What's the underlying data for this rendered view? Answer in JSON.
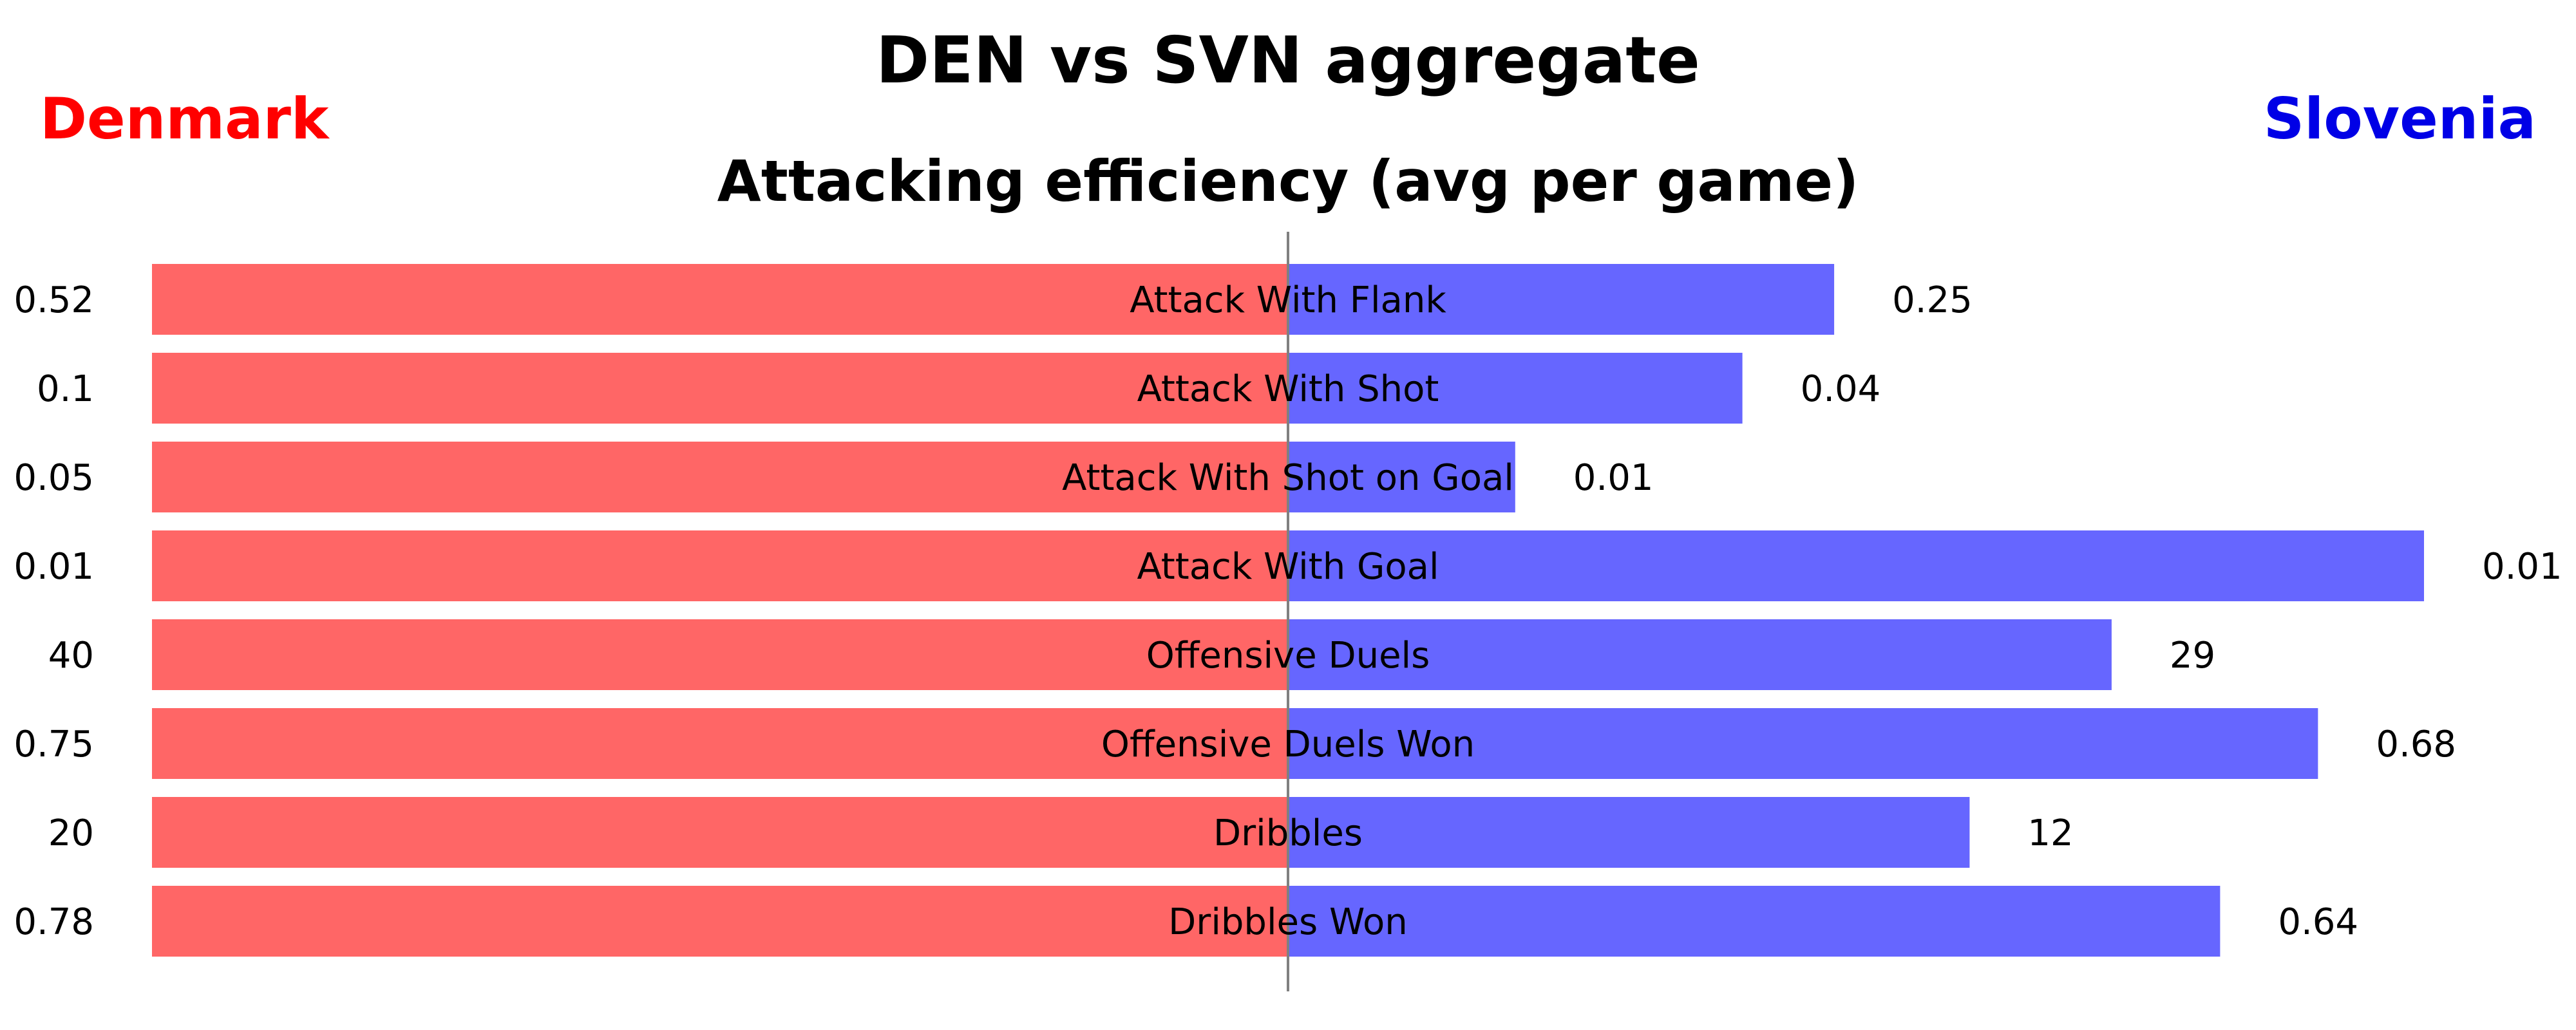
{
  "figure": {
    "title": "DEN vs SVN aggregate",
    "subtitle": "Attacking efficiency (avg per game)"
  },
  "teams": {
    "left": {
      "name": "Denmark",
      "color": "#ff0000",
      "bar_color": "#ff6666"
    },
    "right": {
      "name": "Slovenia",
      "color": "#0000e6",
      "bar_color": "#6666ff"
    }
  },
  "chart_data": {
    "type": "bar",
    "orientation": "diverging-horizontal",
    "title": "DEN vs SVN aggregate",
    "subtitle": "Attacking efficiency (avg per game)",
    "categories": [
      "Attack With Flank",
      "Attack With Shot",
      "Attack With Shot on Goal",
      "Attack With Goal",
      "Offensive Duels",
      "Offensive Duels Won",
      "Dribbles",
      "Dribbles Won"
    ],
    "series": [
      {
        "name": "Denmark",
        "side": "left",
        "values": [
          0.52,
          0.1,
          0.05,
          0.01,
          40,
          0.75,
          20,
          0.78
        ],
        "labels": [
          "0.52",
          "0.1",
          "0.05",
          "0.01",
          "40",
          "0.75",
          "20",
          "0.78"
        ]
      },
      {
        "name": "Slovenia",
        "side": "right",
        "values": [
          0.25,
          0.04,
          0.01,
          0.01,
          29,
          0.68,
          12,
          0.64
        ],
        "labels": [
          "0.25",
          "0.04",
          "0.01",
          "0.01",
          "29",
          "0.68",
          "12",
          "0.64"
        ]
      }
    ],
    "scaling": "each category scaled to its own maximum value across both teams",
    "grid": false,
    "legend": "team names in top-left and top-right corners"
  }
}
